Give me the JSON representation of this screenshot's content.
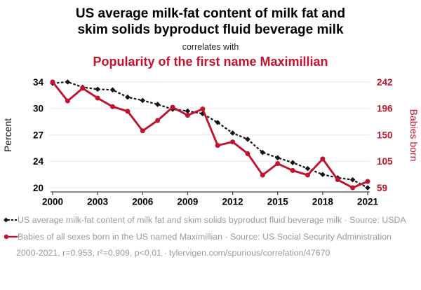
{
  "header": {
    "title_line1": "US average milk-fat content of milk fat and",
    "title_line2": "skim solids byproduct fluid beverage milk",
    "connector": "correlates with",
    "subtitle": "Popularity of the first name Maximillian"
  },
  "colors": {
    "accent_red": "#c1122f",
    "series_black": "#141414",
    "grid": "#ebebeb",
    "axis_line": "#404040",
    "tick_text": "#000000",
    "muted_text": "#9a9a9a"
  },
  "chart_data": {
    "type": "line",
    "x": [
      2000,
      2001,
      2002,
      2003,
      2004,
      2005,
      2006,
      2007,
      2008,
      2009,
      2010,
      2011,
      2012,
      2013,
      2014,
      2015,
      2016,
      2017,
      2018,
      2019,
      2020,
      2021
    ],
    "x_ticks": [
      2000,
      2003,
      2006,
      2009,
      2012,
      2015,
      2018,
      2021
    ],
    "left_axis": {
      "label": "Percent",
      "ticks": [
        34,
        30,
        27,
        24,
        20
      ],
      "min": 20,
      "max": 34
    },
    "right_axis": {
      "label": "Babies born",
      "ticks": [
        242,
        196,
        150,
        105,
        59
      ],
      "min": 59,
      "max": 242
    },
    "grid": "horizontal-only",
    "legend_position": "below",
    "series": [
      {
        "name": "US average milk-fat content of milk fat and skim solids byproduct fluid beverage milk",
        "source": "USDA",
        "axis": "left",
        "color": "#141414",
        "line_style": "dashed",
        "marker": "diamond",
        "values": [
          33.8,
          34.0,
          33.2,
          32.9,
          32.8,
          31.7,
          31.2,
          30.6,
          29.9,
          29.7,
          29.4,
          28.4,
          27.2,
          26.5,
          25.0,
          24.4,
          23.8,
          22.9,
          22.0,
          21.5,
          21.2,
          20.0
        ]
      },
      {
        "name": "Babies of all sexes born in the US named Maximillian",
        "source": "US Social Security Administration",
        "axis": "right",
        "color": "#c1122f",
        "line_style": "solid",
        "marker": "circle",
        "values": [
          242,
          209,
          231,
          214,
          199,
          191,
          157,
          175,
          198,
          184,
          195,
          132,
          138,
          118,
          81,
          101,
          89,
          81,
          109,
          73,
          59,
          70
        ]
      }
    ]
  },
  "legend": [
    {
      "marker": "black-diamond-dashed",
      "label": "US average milk-fat content of milk fat and skim solids byproduct fluid beverage milk · Source: USDA"
    },
    {
      "marker": "red-circle-solid",
      "label": "Babies of all sexes born in the US named Maximillian · Source: US Social Security Administration"
    }
  ],
  "footer": {
    "text": "2000-2021, r=0.953, r²=0.909, p<0.01 · tylervigen.com/spurious/correlation/47670"
  }
}
